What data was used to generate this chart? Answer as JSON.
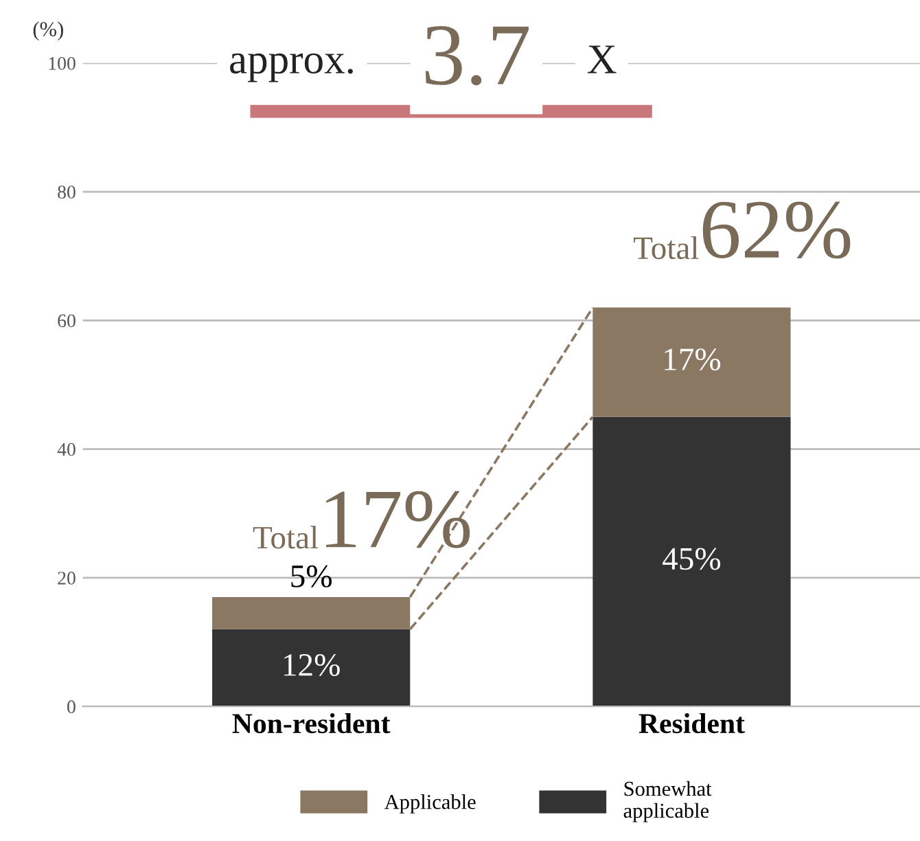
{
  "chart_data": {
    "type": "bar",
    "stacked": true,
    "title": "approx. 3.7 X",
    "ylabel": "(%)",
    "categories": [
      "Non-resident",
      "Resident"
    ],
    "series": [
      {
        "name": "Somewhat applicable",
        "color": "#333333",
        "values": [
          12,
          45
        ],
        "value_labels": [
          "12%",
          "45%"
        ]
      },
      {
        "name": "Applicable",
        "color": "#8b7862",
        "values": [
          5,
          17
        ],
        "value_labels": [
          "5%",
          "17%"
        ]
      }
    ],
    "totals": [
      "17%",
      "62%"
    ],
    "annotations": [
      {
        "text": "Total",
        "x": "Non-resident",
        "y": 17
      },
      {
        "text": "Total",
        "x": "Resident",
        "y": 62
      }
    ],
    "ylim": [
      0,
      100
    ],
    "yticks": [
      0,
      20,
      40,
      60,
      80,
      100
    ],
    "grid": "y",
    "legend": "bottom"
  }
}
